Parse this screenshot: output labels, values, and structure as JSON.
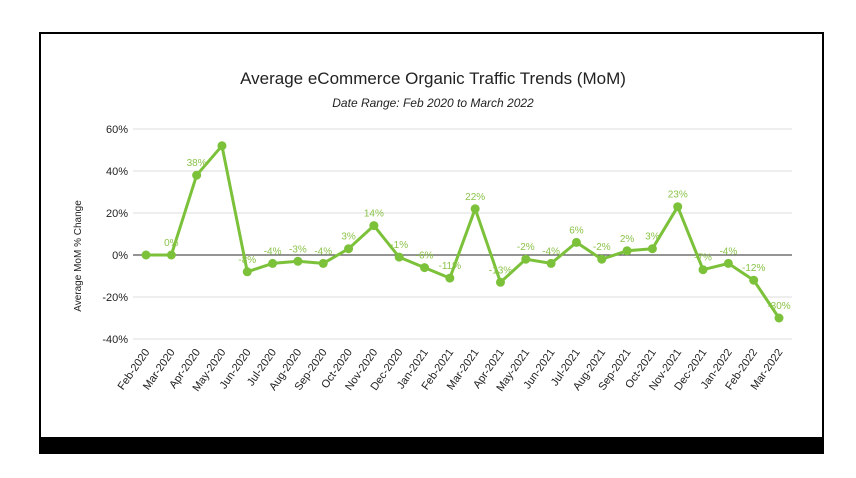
{
  "chart_data": {
    "type": "line",
    "title": "Average eCommerce Organic Traffic Trends (MoM)",
    "subtitle": "Date Range: Feb 2020 to March 2022",
    "xlabel": "",
    "ylabel": "Average MoM % Change",
    "ylim": [
      -40,
      60
    ],
    "yticks": [
      -40,
      -20,
      0,
      20,
      40,
      60
    ],
    "ytick_labels": [
      "-40%",
      "-20%",
      "0%",
      "20%",
      "40%",
      "60%"
    ],
    "grid": true,
    "line_color": "#7cc13a",
    "categories": [
      "Feb-2020",
      "Mar-2020",
      "Apr-2020",
      "May-2020",
      "Jun-2020",
      "Jul-2020",
      "Aug-2020",
      "Sep-2020",
      "Oct-2020",
      "Nov-2020",
      "Dec-2020",
      "Jan-2021",
      "Feb-2021",
      "Mar-2021",
      "Apr-2021",
      "May-2021",
      "Jun-2021",
      "Jul-2021",
      "Aug-2021",
      "Sep-2021",
      "Oct-2021",
      "Nov-2021",
      "Dec-2021",
      "Jan-2022",
      "Feb-2022",
      "Mar-2022"
    ],
    "values": [
      0,
      0,
      38,
      52,
      -8,
      -4,
      -3,
      -4,
      3,
      14,
      -1,
      -6,
      -11,
      22,
      -13,
      -2,
      -4,
      6,
      -2,
      2,
      3,
      23,
      -7,
      -4,
      -12,
      -30
    ],
    "data_labels": [
      "",
      "0%",
      "38%",
      "",
      "-8%",
      "-4%",
      "-3%",
      "-4%",
      "3%",
      "14%",
      "-1%",
      "-6%",
      "-11%",
      "22%",
      "-13%",
      "-2%",
      "-4%",
      "6%",
      "-2%",
      "2%",
      "3%",
      "23%",
      "-7%",
      "-4%",
      "-12%",
      "-30%"
    ]
  }
}
